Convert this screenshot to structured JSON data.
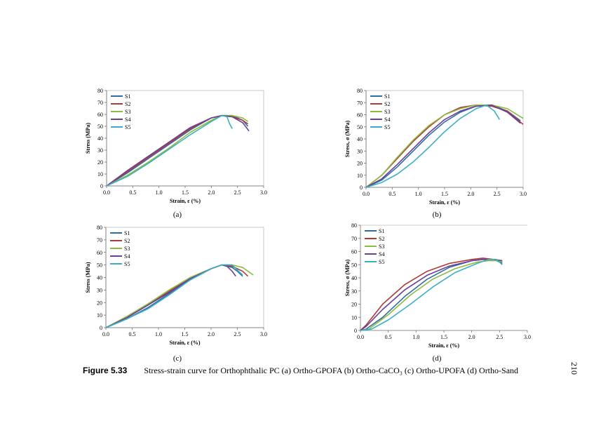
{
  "chart_data": [
    {
      "type": "line",
      "panel": "a",
      "xlabel": "Strain, ε (%)",
      "ylabel": "Stress (MPa)",
      "xlim": [
        0,
        3
      ],
      "ylim": [
        0,
        80
      ],
      "xticks": [
        "0.0",
        "0.5",
        "1.0",
        "1.5",
        "2.0",
        "2.5",
        "3.0"
      ],
      "yticks": [
        "0",
        "10",
        "20",
        "30",
        "40",
        "50",
        "60",
        "70",
        "80"
      ],
      "legend_position": "top-left",
      "series": [
        {
          "name": "S1",
          "color": "#2e6da4",
          "x": [
            0,
            0.4,
            0.8,
            1.2,
            1.6,
            2.0,
            2.2,
            2.4,
            2.6,
            2.7
          ],
          "y": [
            0,
            11,
            23,
            35,
            47,
            57,
            59,
            59,
            55,
            50
          ]
        },
        {
          "name": "S2",
          "color": "#b03a3a",
          "x": [
            0,
            0.4,
            0.8,
            1.2,
            1.6,
            2.0,
            2.2,
            2.4,
            2.6,
            2.7
          ],
          "y": [
            0,
            12,
            24,
            36,
            48,
            57,
            59,
            58,
            55,
            52
          ]
        },
        {
          "name": "S3",
          "color": "#8cbc3c",
          "x": [
            0,
            0.4,
            0.8,
            1.2,
            1.6,
            2.0,
            2.2,
            2.4,
            2.6,
            2.7
          ],
          "y": [
            0,
            9,
            20,
            32,
            45,
            55,
            59,
            59,
            57,
            54
          ]
        },
        {
          "name": "S4",
          "color": "#6a3f96",
          "x": [
            0,
            0.4,
            0.8,
            1.2,
            1.6,
            2.0,
            2.2,
            2.4,
            2.6,
            2.72
          ],
          "y": [
            0,
            13,
            25,
            37,
            49,
            57,
            59,
            58,
            53,
            46
          ]
        },
        {
          "name": "S5",
          "color": "#3aafc4",
          "x": [
            0,
            0.4,
            0.8,
            1.2,
            1.6,
            2.0,
            2.2,
            2.3,
            2.35,
            2.4
          ],
          "y": [
            0,
            8,
            19,
            31,
            43,
            54,
            59,
            58,
            52,
            48
          ]
        }
      ]
    },
    {
      "type": "line",
      "panel": "b",
      "xlabel": "Strain, ε (%)",
      "ylabel": "Stress, σ (MPa)",
      "xlim": [
        0,
        3
      ],
      "ylim": [
        0,
        80
      ],
      "xticks": [
        "0.0",
        "0.5",
        "1.0",
        "1.5",
        "2.0",
        "2.5",
        "3.0"
      ],
      "yticks": [
        "0",
        "10",
        "20",
        "30",
        "40",
        "50",
        "60",
        "70",
        "80"
      ],
      "legend_position": "top-left",
      "series": [
        {
          "name": "S1",
          "color": "#2e6da4",
          "x": [
            0,
            0.3,
            0.6,
            0.9,
            1.2,
            1.5,
            1.8,
            2.1,
            2.4,
            2.7,
            2.95
          ],
          "y": [
            0,
            6,
            17,
            30,
            43,
            54,
            62,
            67,
            68,
            63,
            55
          ]
        },
        {
          "name": "S2",
          "color": "#b03a3a",
          "x": [
            0,
            0.3,
            0.6,
            0.9,
            1.2,
            1.5,
            1.8,
            2.1,
            2.4,
            2.7,
            3.0
          ],
          "y": [
            0,
            10,
            24,
            38,
            50,
            60,
            66,
            68,
            67,
            63,
            52
          ]
        },
        {
          "name": "S3",
          "color": "#8cbc3c",
          "x": [
            0,
            0.3,
            0.6,
            0.9,
            1.2,
            1.5,
            1.8,
            2.1,
            2.4,
            2.7,
            3.0
          ],
          "y": [
            0,
            10,
            25,
            39,
            51,
            60,
            65,
            68,
            68,
            65,
            57
          ]
        },
        {
          "name": "S4",
          "color": "#6a3f96",
          "x": [
            0,
            0.3,
            0.6,
            0.9,
            1.2,
            1.5,
            1.8,
            2.1,
            2.4,
            2.7,
            2.95
          ],
          "y": [
            0,
            7,
            19,
            32,
            45,
            56,
            63,
            67,
            68,
            62,
            53
          ]
        },
        {
          "name": "S5",
          "color": "#3aafc4",
          "x": [
            0,
            0.3,
            0.6,
            0.9,
            1.2,
            1.5,
            1.8,
            2.1,
            2.3,
            2.45,
            2.55
          ],
          "y": [
            0,
            4,
            11,
            21,
            33,
            46,
            57,
            65,
            68,
            63,
            56
          ]
        }
      ]
    },
    {
      "type": "line",
      "panel": "c",
      "xlabel": "Strain, ε (%)",
      "ylabel": "Stress (MPa)",
      "xlim": [
        0,
        3
      ],
      "ylim": [
        0,
        80
      ],
      "xticks": [
        "0.0",
        "0.5",
        "1.0",
        "1.5",
        "2.0",
        "2.5",
        "3.0"
      ],
      "yticks": [
        "0",
        "10",
        "20",
        "30",
        "40",
        "50",
        "60",
        "70",
        "80"
      ],
      "legend_position": "top-left",
      "series": [
        {
          "name": "S1",
          "color": "#2e6da4",
          "x": [
            0,
            0.4,
            0.8,
            1.2,
            1.6,
            2.0,
            2.2,
            2.4,
            2.5,
            2.6
          ],
          "y": [
            0,
            7,
            16,
            27,
            38,
            47,
            50,
            48,
            45,
            41
          ]
        },
        {
          "name": "S2",
          "color": "#b03a3a",
          "x": [
            0,
            0.4,
            0.8,
            1.2,
            1.6,
            2.0,
            2.2,
            2.4,
            2.6,
            2.7
          ],
          "y": [
            0,
            8,
            18,
            29,
            39,
            47,
            50,
            49,
            45,
            41
          ]
        },
        {
          "name": "S3",
          "color": "#8cbc3c",
          "x": [
            0,
            0.4,
            0.8,
            1.2,
            1.6,
            2.0,
            2.2,
            2.4,
            2.6,
            2.8
          ],
          "y": [
            0,
            9,
            19,
            30,
            40,
            47,
            50,
            50,
            48,
            42
          ]
        },
        {
          "name": "S4",
          "color": "#6a3f96",
          "x": [
            0,
            0.4,
            0.8,
            1.2,
            1.6,
            2.0,
            2.2,
            2.3,
            2.4,
            2.47
          ],
          "y": [
            0,
            8,
            18,
            28,
            39,
            47,
            50,
            49,
            45,
            41
          ]
        },
        {
          "name": "S5",
          "color": "#3aafc4",
          "x": [
            0,
            0.4,
            0.8,
            1.2,
            1.6,
            2.0,
            2.2,
            2.4,
            2.5,
            2.6
          ],
          "y": [
            0,
            7,
            15,
            26,
            38,
            47,
            50,
            50,
            46,
            42
          ]
        }
      ]
    },
    {
      "type": "line",
      "panel": "d",
      "xlabel": "Strain, ε (%)",
      "ylabel": "Stress, σ (MPa)",
      "xlim": [
        0,
        3
      ],
      "ylim": [
        0,
        80
      ],
      "xticks": [
        "0.0",
        "0.5",
        "1.0",
        "1.5",
        "2.0",
        "2.5",
        "3.0"
      ],
      "yticks": [
        "0",
        "10",
        "20",
        "30",
        "40",
        "50",
        "60",
        "70",
        "80"
      ],
      "legend_position": "top-left",
      "series": [
        {
          "name": "S1",
          "color": "#2e6da4",
          "x": [
            0,
            0.1,
            0.4,
            0.8,
            1.2,
            1.6,
            2.0,
            2.2,
            2.4,
            2.55
          ],
          "y": [
            0,
            1,
            10,
            26,
            39,
            48,
            53,
            54,
            54,
            51
          ]
        },
        {
          "name": "S2",
          "color": "#b03a3a",
          "x": [
            0,
            0.1,
            0.4,
            0.8,
            1.2,
            1.6,
            2.0,
            2.2,
            2.4,
            2.55
          ],
          "y": [
            0,
            4,
            20,
            35,
            45,
            51,
            54,
            55,
            54,
            52
          ]
        },
        {
          "name": "S3",
          "color": "#8cbc3c",
          "x": [
            0,
            0.15,
            0.5,
            0.9,
            1.3,
            1.7,
            2.1,
            2.3,
            2.5,
            2.55
          ],
          "y": [
            0,
            1,
            12,
            27,
            39,
            47,
            52,
            53,
            53,
            52
          ]
        },
        {
          "name": "S4",
          "color": "#6a3f96",
          "x": [
            0,
            0.1,
            0.4,
            0.8,
            1.2,
            1.6,
            2.0,
            2.2,
            2.4,
            2.55
          ],
          "y": [
            0,
            3,
            16,
            31,
            42,
            49,
            53,
            54,
            54,
            53
          ]
        },
        {
          "name": "S5",
          "color": "#3aafc4",
          "x": [
            0,
            0.2,
            0.5,
            0.9,
            1.3,
            1.7,
            2.1,
            2.3,
            2.45,
            2.55
          ],
          "y": [
            0,
            1,
            8,
            20,
            33,
            44,
            51,
            54,
            54,
            50
          ]
        }
      ]
    }
  ],
  "panel_labels": [
    "(a)",
    "(b)",
    "(c)",
    "(d)"
  ],
  "caption": {
    "label": "Figure 5.33",
    "text": "Stress-strain curve for Orthophthalic PC (a) Ortho-GPOFA (b) Ortho-CaCO₃ (c) Ortho-UPOFA (d) Ortho-Sand"
  },
  "page_number": "210"
}
